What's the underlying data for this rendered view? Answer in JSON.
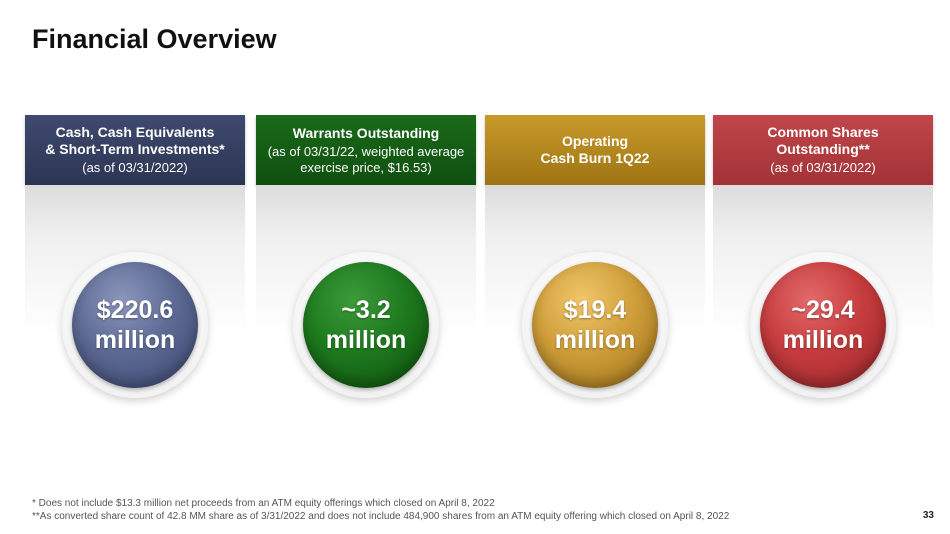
{
  "slide": {
    "title": "Financial Overview",
    "page_number": "33"
  },
  "cards": [
    {
      "header_line1": "Cash, Cash Equivalents",
      "header_line2": "& Short-Term Investments*",
      "subheader": "(as of 03/31/2022)",
      "value_line1": "$220.6",
      "value_line2": "million",
      "color": "#3c466e"
    },
    {
      "header_line1": "Warrants Outstanding",
      "header_line2": "",
      "subheader": "(as of 03/31/22, weighted average exercise price, $16.53)",
      "value_line1": "~3.2",
      "value_line2": "million",
      "color": "#1a6a1a"
    },
    {
      "header_line1": "Operating",
      "header_line2": "Cash Burn 1Q22",
      "subheader": "",
      "value_line1": "$19.4",
      "value_line2": "million",
      "color": "#c99a2a"
    },
    {
      "header_line1": "Common Shares",
      "header_line2": "Outstanding**",
      "subheader": "(as of 03/31/2022)",
      "value_line1": "~29.4",
      "value_line2": "million",
      "color": "#c0464a"
    }
  ],
  "footnotes": [
    "* Does not include $13.3 million net proceeds from an ATM equity offerings which closed on April 8, 2022",
    "**As converted share count of 42.8 MM share as of 3/31/2022 and does not include 484,900 shares from an ATM equity offering which closed on April 8, 2022"
  ]
}
